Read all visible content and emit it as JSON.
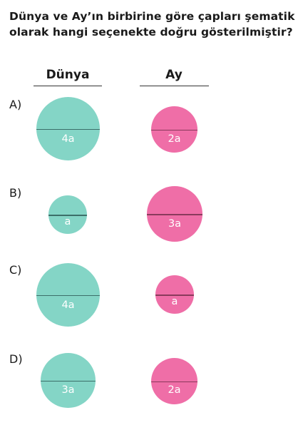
{
  "question": "Dünya ve Ay’ın birbirine göre çapları şematik olarak hangi seçenekte doğru gösterilmiştir?",
  "columns": {
    "earth": "Dünya",
    "moon": "Ay"
  },
  "colors": {
    "earth": "#84d5c6",
    "moon": "#ef6ea7"
  },
  "options": [
    {
      "letter": "A)",
      "earth": "4a",
      "moon": "2a"
    },
    {
      "letter": "B)",
      "earth": "a",
      "moon": "3a"
    },
    {
      "letter": "C)",
      "earth": "4a",
      "moon": "a"
    },
    {
      "letter": "D)",
      "earth": "3a",
      "moon": "2a"
    }
  ]
}
